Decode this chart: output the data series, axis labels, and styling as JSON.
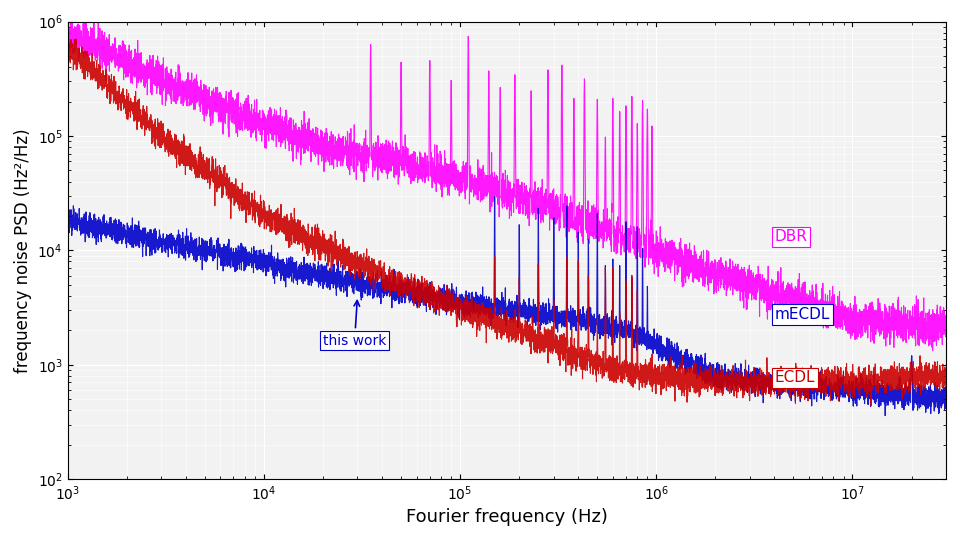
{
  "xlabel": "Fourier frequency (Hz)",
  "ylabel": "frequency noise PSD (Hz²/Hz)",
  "xlim_log": [
    3,
    7.5
  ],
  "ylim_log": [
    2,
    6
  ],
  "color_DBR": "#ff00ff",
  "color_mECDL": "#0000cc",
  "color_ECDL": "#cc0000",
  "label_DBR": "DBR",
  "label_mECDL": "mECDL",
  "label_ECDL": "ECDL",
  "annotation": "this work",
  "bg_color": "#f2f2f2"
}
